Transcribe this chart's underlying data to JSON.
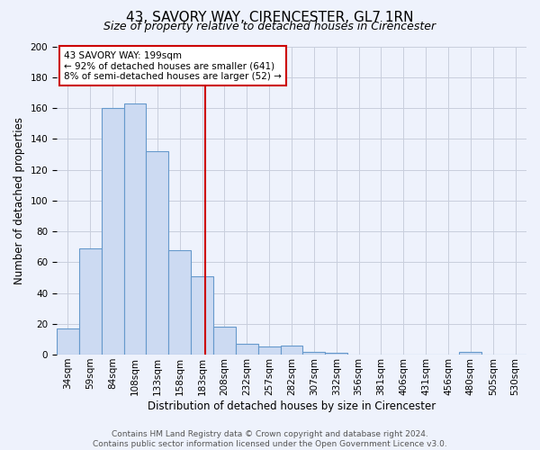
{
  "title": "43, SAVORY WAY, CIRENCESTER, GL7 1RN",
  "subtitle": "Size of property relative to detached houses in Cirencester",
  "bar_values": [
    17,
    69,
    160,
    163,
    132,
    68,
    51,
    18,
    7,
    5,
    6,
    2,
    1,
    0,
    0,
    0,
    0,
    0,
    2,
    0,
    0
  ],
  "bin_labels": [
    "34sqm",
    "59sqm",
    "84sqm",
    "108sqm",
    "133sqm",
    "158sqm",
    "183sqm",
    "208sqm",
    "232sqm",
    "257sqm",
    "282sqm",
    "307sqm",
    "332sqm",
    "356sqm",
    "381sqm",
    "406sqm",
    "431sqm",
    "456sqm",
    "480sqm",
    "505sqm",
    "530sqm"
  ],
  "bar_color": "#ccdaf2",
  "bar_edge_color": "#6699cc",
  "property_line_color": "#cc0000",
  "xlabel": "Distribution of detached houses by size in Cirencester",
  "ylabel": "Number of detached properties",
  "ylim": [
    0,
    200
  ],
  "yticks": [
    0,
    20,
    40,
    60,
    80,
    100,
    120,
    140,
    160,
    180,
    200
  ],
  "annotation_title": "43 SAVORY WAY: 199sqm",
  "annotation_line1": "← 92% of detached houses are smaller (641)",
  "annotation_line2": "8% of semi-detached houses are larger (52) →",
  "annotation_box_color": "#cc0000",
  "footer_line1": "Contains HM Land Registry data © Crown copyright and database right 2024.",
  "footer_line2": "Contains public sector information licensed under the Open Government Licence v3.0.",
  "background_color": "#eef2fc",
  "grid_color": "#c8cedd",
  "title_fontsize": 11,
  "subtitle_fontsize": 9,
  "axis_label_fontsize": 8.5,
  "tick_label_fontsize": 7.5,
  "footer_fontsize": 6.5
}
